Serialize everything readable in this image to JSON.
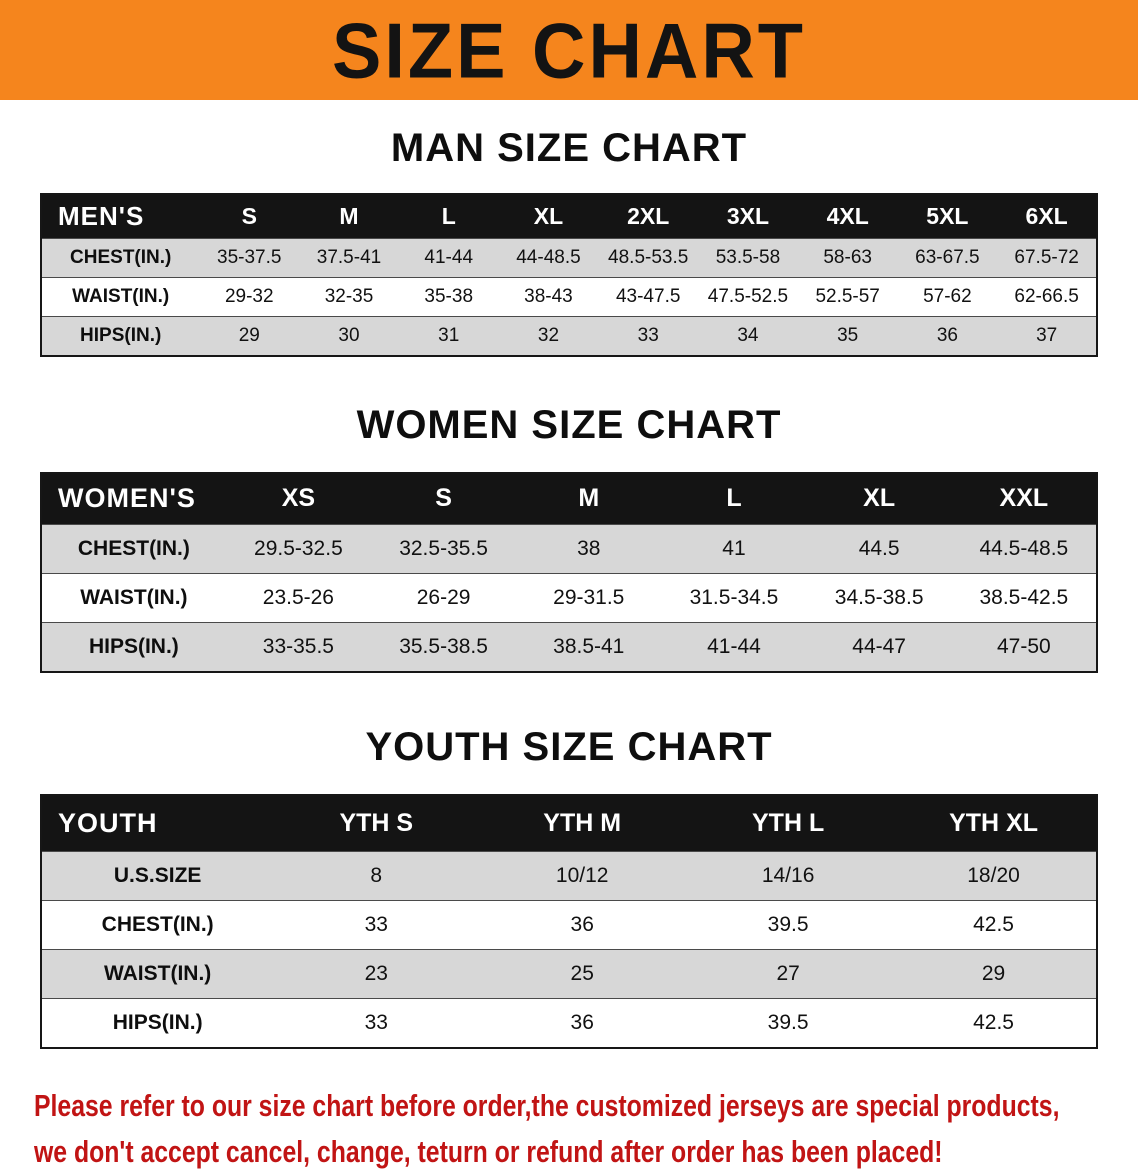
{
  "banner": {
    "title": "SIZE CHART"
  },
  "sections": {
    "men": {
      "title": "MAN SIZE CHART"
    },
    "women": {
      "title": "WOMEN SIZE CHART"
    },
    "youth": {
      "title": "YOUTH SIZE CHART"
    }
  },
  "tables": {
    "men": {
      "header": [
        "MEN'S",
        "S",
        "M",
        "L",
        "XL",
        "2XL",
        "3XL",
        "4XL",
        "5XL",
        "6XL"
      ],
      "rows": [
        {
          "label": "CHEST(IN.)",
          "values": [
            "35-37.5",
            "37.5-41",
            "41-44",
            "44-48.5",
            "48.5-53.5",
            "53.5-58",
            "58-63",
            "63-67.5",
            "67.5-72"
          ]
        },
        {
          "label": "WAIST(IN.)",
          "values": [
            "29-32",
            "32-35",
            "35-38",
            "38-43",
            "43-47.5",
            "47.5-52.5",
            "52.5-57",
            "57-62",
            "62-66.5"
          ]
        },
        {
          "label": "HIPS(IN.)",
          "values": [
            "29",
            "30",
            "31",
            "32",
            "33",
            "34",
            "35",
            "36",
            "37"
          ]
        }
      ]
    },
    "women": {
      "header": [
        "WOMEN'S",
        "XS",
        "S",
        "M",
        "L",
        "XL",
        "XXL"
      ],
      "rows": [
        {
          "label": "CHEST(IN.)",
          "values": [
            "29.5-32.5",
            "32.5-35.5",
            "38",
            "41",
            "44.5",
            "44.5-48.5"
          ]
        },
        {
          "label": "WAIST(IN.)",
          "values": [
            "23.5-26",
            "26-29",
            "29-31.5",
            "31.5-34.5",
            "34.5-38.5",
            "38.5-42.5"
          ]
        },
        {
          "label": "HIPS(IN.)",
          "values": [
            "33-35.5",
            "35.5-38.5",
            "38.5-41",
            "41-44",
            "44-47",
            "47-50"
          ]
        }
      ]
    },
    "youth": {
      "header": [
        "YOUTH",
        "YTH S",
        "YTH M",
        "YTH L",
        "YTH XL"
      ],
      "rows": [
        {
          "label": "U.S.SIZE",
          "values": [
            "8",
            "10/12",
            "14/16",
            "18/20"
          ]
        },
        {
          "label": "CHEST(IN.)",
          "values": [
            "33",
            "36",
            "39.5",
            "42.5"
          ]
        },
        {
          "label": "WAIST(IN.)",
          "values": [
            "23",
            "25",
            "27",
            "29"
          ]
        },
        {
          "label": "HIPS(IN.)",
          "values": [
            "33",
            "36",
            "39.5",
            "42.5"
          ]
        }
      ]
    }
  },
  "notice": {
    "line1": "Please refer to our size chart before order,the customized jerseys are special products,",
    "line2": "we don't accept cancel, change, teturn or refund after order has been placed!"
  },
  "colors": {
    "banner_bg": "#f5851d",
    "header_row_bg": "#141414",
    "stripe_bg": "#d7d7d7",
    "notice_text": "#c11414"
  }
}
